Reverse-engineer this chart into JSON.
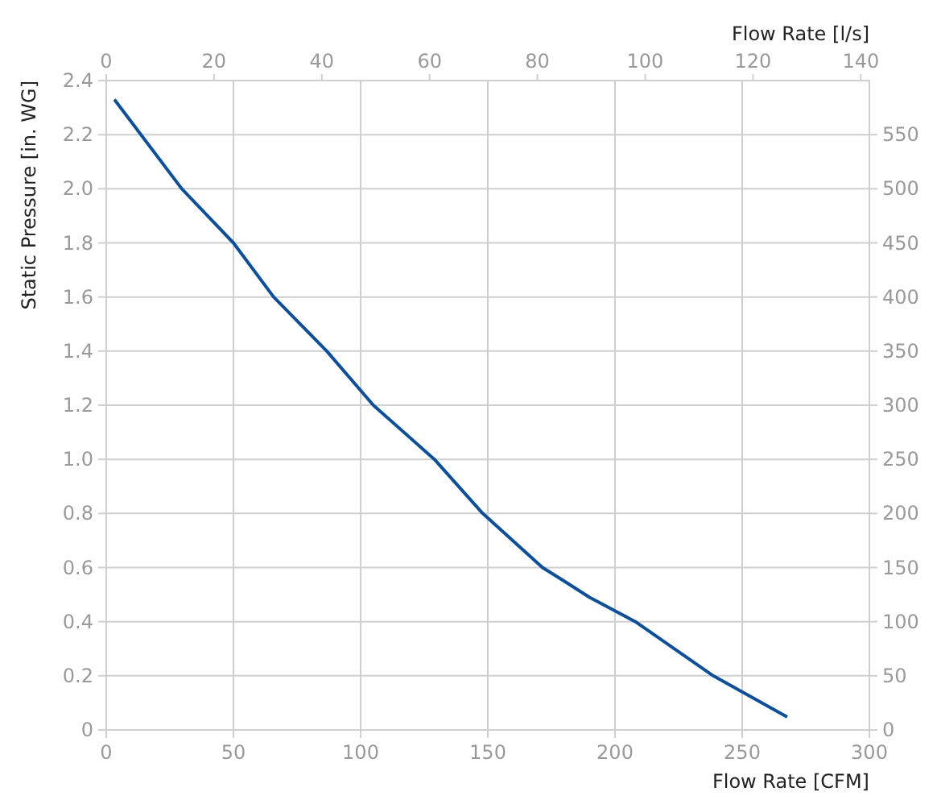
{
  "chart_data": {
    "type": "line",
    "xlabel": "Flow Rate [CFM]",
    "ylabel": "Static Pressure [in. WG]",
    "x2label": "Flow Rate [l/s]",
    "xlim": [
      0,
      300
    ],
    "xticks": [
      0,
      50,
      100,
      150,
      200,
      250,
      300
    ],
    "ylim": [
      0,
      2.4
    ],
    "yticks": [
      0,
      {
        "value": 0.2,
        "label": "0.2"
      },
      {
        "value": 0.4,
        "label": "0.4"
      },
      {
        "value": 0.6,
        "label": "0.6"
      },
      {
        "value": 0.8,
        "label": "0.8"
      },
      {
        "value": 1,
        "label": "1.0"
      },
      {
        "value": 1.2,
        "label": "1.2"
      },
      {
        "value": 1.4,
        "label": "1.4"
      },
      {
        "value": 1.6,
        "label": "1.6"
      },
      {
        "value": 1.8,
        "label": "1.8"
      },
      {
        "value": 2,
        "label": "2.0"
      },
      {
        "value": 2.2,
        "label": "2.2"
      },
      {
        "value": 2.4,
        "label": "2.4"
      }
    ],
    "x2lim": [
      0,
      141.6
    ],
    "x2ticks": [
      0,
      20,
      40,
      60,
      80,
      100,
      120,
      140
    ],
    "y2lim": [
      0,
      600
    ],
    "y2ticks": [
      0,
      50,
      100,
      150,
      200,
      250,
      300,
      350,
      400,
      450,
      500,
      550
    ],
    "grid": true,
    "marker": "none",
    "line_style": "solid",
    "series": [
      {
        "color": "#0a4fa0",
        "x": [
          3.2,
          29.7,
          50,
          65.8,
          86.7,
          105,
          129,
          148,
          171.5,
          180,
          190,
          208,
          238.6,
          267.7
        ],
        "values": [
          2.33,
          2.0,
          1.8,
          1.6,
          1.4,
          1.2,
          1.0,
          0.8,
          0.6,
          0.55,
          0.49,
          0.4,
          0.2,
          0.048
        ]
      }
    ]
  }
}
